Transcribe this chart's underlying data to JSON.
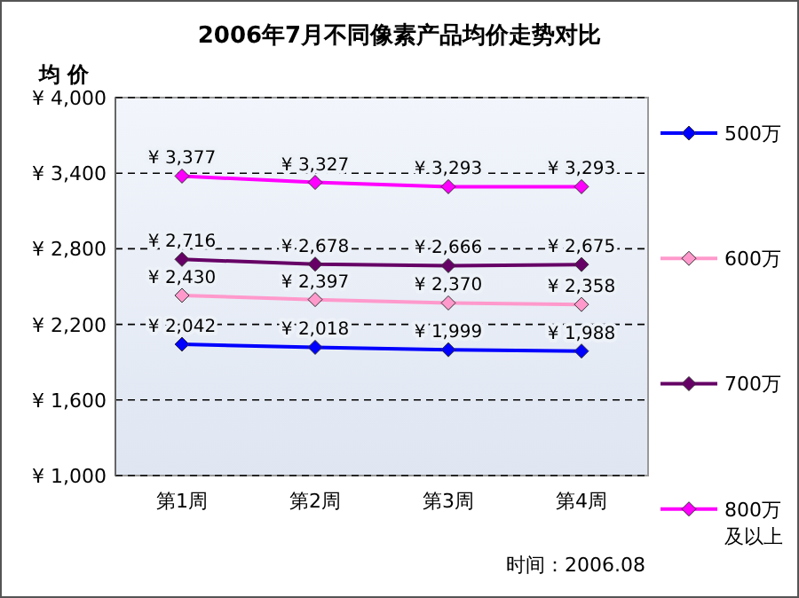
{
  "chart_data": {
    "type": "line",
    "title": "2006年7月不同像素产品均价走势对比",
    "ylabel": "均 价",
    "categories": [
      "第1周",
      "第2周",
      "第3周",
      "第4周"
    ],
    "series": [
      {
        "name": "500万",
        "color": "#0000ff",
        "values": [
          2042,
          2018,
          1999,
          1988
        ],
        "value_labels": [
          "¥ 2,042",
          "¥ 2,018",
          "¥ 1,999",
          "¥ 1,988"
        ]
      },
      {
        "name": "600万",
        "color": "#ff99cc",
        "values": [
          2430,
          2397,
          2370,
          2358
        ],
        "value_labels": [
          "¥ 2,430",
          "¥ 2,397",
          "¥ 2,370",
          "¥ 2,358"
        ]
      },
      {
        "name": "700万",
        "color": "#660066",
        "values": [
          2716,
          2678,
          2666,
          2675
        ],
        "value_labels": [
          "¥ 2,716",
          "¥ 2,678",
          "¥ 2,666",
          "¥ 2,675"
        ]
      },
      {
        "name": "800万及以上",
        "color": "#ff00ff",
        "values": [
          3377,
          3327,
          3293,
          3293
        ],
        "value_labels": [
          "¥ 3,377",
          "¥ 3,327",
          "¥ 3,293",
          "¥ 3,293"
        ]
      }
    ],
    "ylim": [
      1000,
      4000
    ],
    "yticks": [
      {
        "value": 1000,
        "label": "¥ 1,000"
      },
      {
        "value": 1600,
        "label": "¥ 1,600"
      },
      {
        "value": 2200,
        "label": "¥ 2,200"
      },
      {
        "value": 2800,
        "label": "¥ 2,800"
      },
      {
        "value": 3400,
        "label": "¥ 3,400"
      },
      {
        "value": 4000,
        "label": "¥ 4,000"
      }
    ],
    "grid": "y",
    "legend": "right",
    "marker": "diamond",
    "line_style": "solid",
    "annotations": [
      "时间：2006.08"
    ]
  }
}
